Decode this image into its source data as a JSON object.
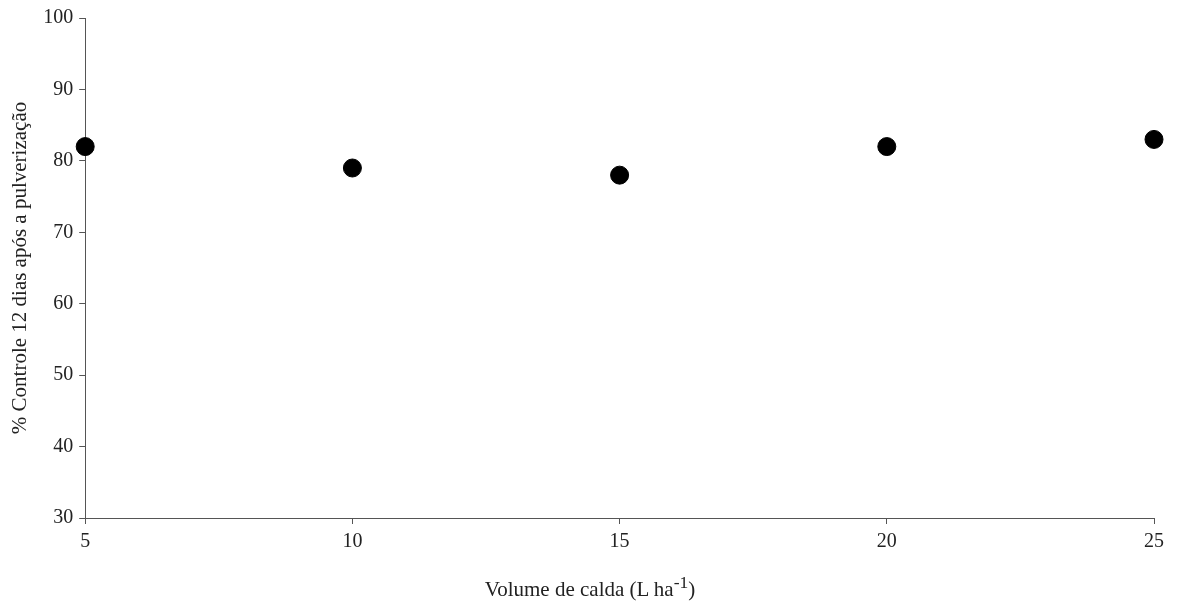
{
  "chart_data": {
    "type": "scatter",
    "xlabel": "Volume de calda (L ha$^{-1}$)",
    "ylabel": "% Controle 12 dias após a pulverização",
    "x": [
      5,
      10,
      15,
      20,
      25
    ],
    "series": [
      {
        "color": "#000000",
        "values": [
          82,
          79,
          78,
          82,
          83
        ]
      }
    ],
    "xlim": [
      5,
      25
    ],
    "xticks": [
      5,
      10,
      15,
      20,
      25
    ],
    "ylim": [
      30,
      100
    ],
    "yticks": [
      30,
      40,
      50,
      60,
      70,
      80,
      90,
      100
    ],
    "grid": false,
    "legend": false,
    "marker": "circle"
  }
}
